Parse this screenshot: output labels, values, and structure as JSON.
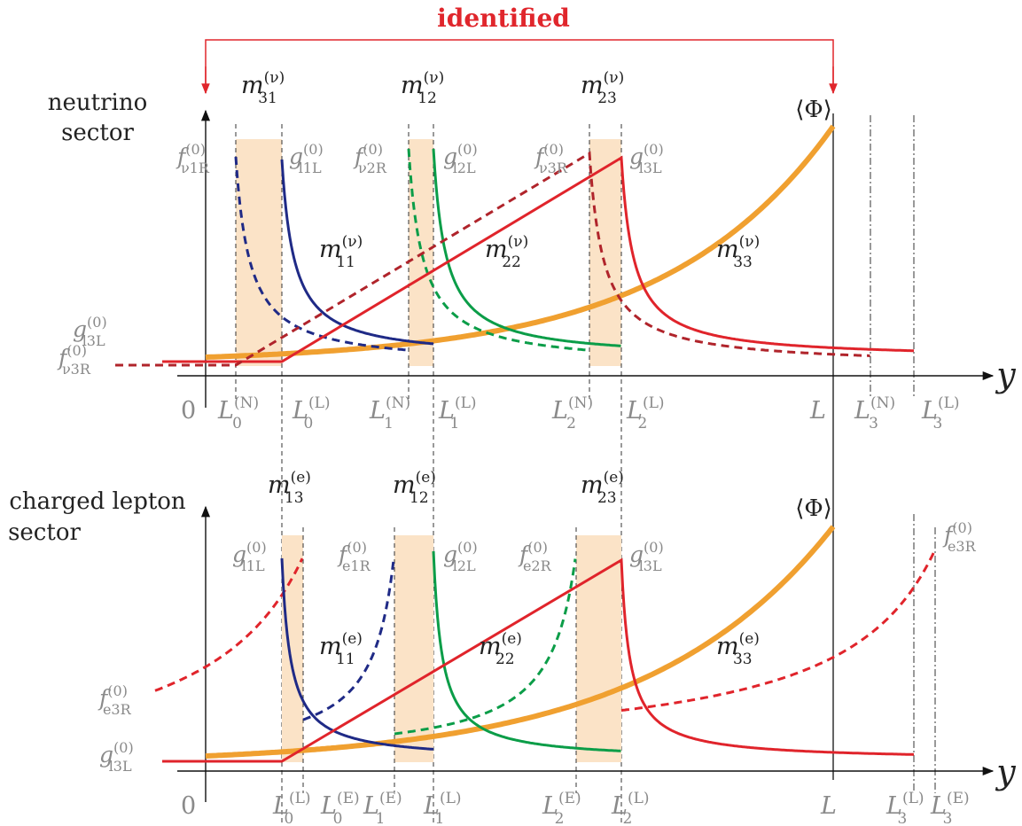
{
  "identified_label": "identified",
  "neutrino": {
    "sector_line1": "neutrino",
    "sector_line2": "sector",
    "phi": "⟨Φ⟩",
    "mass_labels": [
      {
        "base": "m",
        "sup": "(ν)",
        "sub": "31"
      },
      {
        "base": "m",
        "sup": "(ν)",
        "sub": "12"
      },
      {
        "base": "m",
        "sup": "(ν)",
        "sub": "23"
      },
      {
        "base": "m",
        "sup": "(ν)",
        "sub": "11"
      },
      {
        "base": "m",
        "sup": "(ν)",
        "sub": "22"
      },
      {
        "base": "m",
        "sup": "(ν)",
        "sub": "33"
      }
    ],
    "profile_labels": [
      {
        "base": "f",
        "sup": "(0)",
        "sub": "ν1R"
      },
      {
        "base": "g",
        "sup": "(0)",
        "sub": "l1L"
      },
      {
        "base": "f",
        "sup": "(0)",
        "sub": "ν2R"
      },
      {
        "base": "g",
        "sup": "(0)",
        "sub": "l2L"
      },
      {
        "base": "f",
        "sup": "(0)",
        "sub": "ν3R"
      },
      {
        "base": "g",
        "sup": "(0)",
        "sub": "l3L"
      },
      {
        "base": "g",
        "sup": "(0)",
        "sub": "l3L"
      },
      {
        "base": "f",
        "sup": "(0)",
        "sub": "ν3R"
      }
    ],
    "axis_labels": [
      {
        "base": "0",
        "sup": "",
        "sub": ""
      },
      {
        "base": "L",
        "sup": "(N)",
        "sub": "0"
      },
      {
        "base": "L",
        "sup": "(L)",
        "sub": "0"
      },
      {
        "base": "L",
        "sup": "(N)",
        "sub": "1"
      },
      {
        "base": "L",
        "sup": "(L)",
        "sub": "1"
      },
      {
        "base": "L",
        "sup": "(N)",
        "sub": "2"
      },
      {
        "base": "L",
        "sup": "(L)",
        "sub": "2"
      },
      {
        "base": "L",
        "sup": "",
        "sub": ""
      },
      {
        "base": "L",
        "sup": "(N)",
        "sub": "3"
      },
      {
        "base": "L",
        "sup": "(L)",
        "sub": "3"
      }
    ],
    "y_label": "y"
  },
  "charged": {
    "sector_line1": "charged lepton",
    "sector_line2": "sector",
    "phi": "⟨Φ⟩",
    "mass_labels": [
      {
        "base": "m",
        "sup": "(e)",
        "sub": "13"
      },
      {
        "base": "m",
        "sup": "(e)",
        "sub": "12"
      },
      {
        "base": "m",
        "sup": "(e)",
        "sub": "23"
      },
      {
        "base": "m",
        "sup": "(e)",
        "sub": "11"
      },
      {
        "base": "m",
        "sup": "(e)",
        "sub": "22"
      },
      {
        "base": "m",
        "sup": "(e)",
        "sub": "33"
      }
    ],
    "profile_labels": [
      {
        "base": "g",
        "sup": "(0)",
        "sub": "l1L"
      },
      {
        "base": "f",
        "sup": "(0)",
        "sub": "e1R"
      },
      {
        "base": "g",
        "sup": "(0)",
        "sub": "l2L"
      },
      {
        "base": "f",
        "sup": "(0)",
        "sub": "e2R"
      },
      {
        "base": "g",
        "sup": "(0)",
        "sub": "l3L"
      },
      {
        "base": "f",
        "sup": "(0)",
        "sub": "e3R"
      },
      {
        "base": "f",
        "sup": "(0)",
        "sub": "e3R"
      },
      {
        "base": "g",
        "sup": "(0)",
        "sub": "l3L"
      }
    ],
    "axis_labels": [
      {
        "base": "0",
        "sup": "",
        "sub": ""
      },
      {
        "base": "L",
        "sup": "(L)",
        "sub": "0"
      },
      {
        "base": "L",
        "sup": "(E)",
        "sub": "0"
      },
      {
        "base": "L",
        "sup": "(E)",
        "sub": "1"
      },
      {
        "base": "L",
        "sup": "(L)",
        "sub": "1"
      },
      {
        "base": "L",
        "sup": "(E)",
        "sub": "2"
      },
      {
        "base": "L",
        "sup": "(L)",
        "sub": "2"
      },
      {
        "base": "L",
        "sup": "",
        "sub": ""
      },
      {
        "base": "L",
        "sup": "(L)",
        "sub": "3"
      },
      {
        "base": "L",
        "sup": "(E)",
        "sub": "3"
      }
    ],
    "y_label": "y"
  },
  "colors": {
    "blue": "#1f2a86",
    "green": "#0b9d48",
    "red": "#e0242b",
    "darkred": "#b0242b",
    "orange": "#f0a030",
    "band": "#fbe3c7",
    "identified": "#e0262c",
    "grey_text": "#8a8a8a"
  }
}
